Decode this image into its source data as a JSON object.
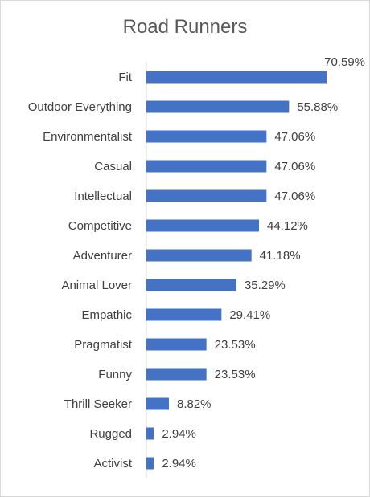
{
  "chart_data": {
    "type": "bar",
    "orientation": "horizontal",
    "title": "Road Runners",
    "xlabel": "",
    "ylabel": "",
    "xlim": [
      0,
      70.59
    ],
    "grid": false,
    "legend": "none",
    "bar_color": "#4472c4",
    "categories": [
      "Fit",
      "Outdoor Everything",
      "Environmentalist",
      "Casual",
      "Intellectual",
      "Competitive",
      "Adventurer",
      "Animal Lover",
      "Empathic",
      "Pragmatist",
      "Funny",
      "Thrill Seeker",
      "Rugged",
      "Activist"
    ],
    "values": [
      70.59,
      55.88,
      47.06,
      47.06,
      47.06,
      44.12,
      41.18,
      35.29,
      29.41,
      23.53,
      23.53,
      8.82,
      2.94,
      2.94
    ],
    "data_labels": [
      "70.59%",
      "55.88%",
      "47.06%",
      "47.06%",
      "47.06%",
      "44.12%",
      "41.18%",
      "35.29%",
      "29.41%",
      "23.53%",
      "23.53%",
      "8.82%",
      "2.94%",
      "2.94%"
    ]
  }
}
